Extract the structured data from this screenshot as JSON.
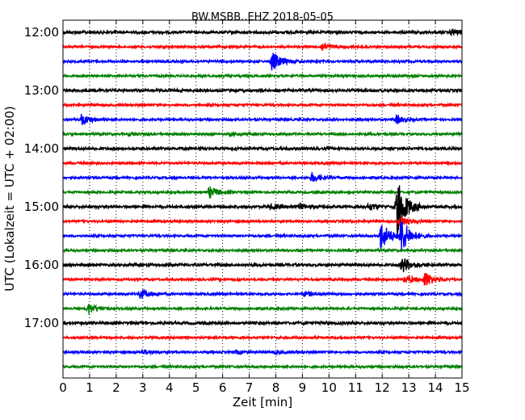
{
  "chart_data": {
    "type": "line",
    "title": "BW.MSBB..EHZ 2018-05-05",
    "xlabel": "Zeit  [min]",
    "ylabel": "UTC (Lokalzeit = UTC + 02:00)",
    "xlim": [
      0,
      15
    ],
    "x_ticks": [
      "0",
      "1",
      "2",
      "3",
      "4",
      "5",
      "6",
      "7",
      "8",
      "9",
      "10",
      "11",
      "12",
      "13",
      "14",
      "15"
    ],
    "y_ticks": [
      {
        "label": "12:00",
        "row": 0
      },
      {
        "label": "13:00",
        "row": 4
      },
      {
        "label": "14:00",
        "row": 8
      },
      {
        "label": "15:00",
        "row": 12
      },
      {
        "label": "16:00",
        "row": 16
      },
      {
        "label": "17:00",
        "row": 20
      }
    ],
    "grid": "vertical dotted",
    "line_interval_minutes": 15,
    "colors": [
      "#000000",
      "#ff0000",
      "#0000ff",
      "#008000"
    ],
    "series": [
      {
        "start": "12:00",
        "events": [
          {
            "t": 14.6,
            "a": 0.35
          }
        ]
      },
      {
        "start": "12:15",
        "events": [
          {
            "t": 9.75,
            "a": 0.5
          }
        ]
      },
      {
        "start": "12:30",
        "events": [
          {
            "t": 7.85,
            "a": 1.2
          }
        ]
      },
      {
        "start": "12:45",
        "events": []
      },
      {
        "start": "13:00",
        "events": []
      },
      {
        "start": "13:15",
        "events": []
      },
      {
        "start": "13:30",
        "events": [
          {
            "t": 0.7,
            "a": 0.7
          },
          {
            "t": 12.5,
            "a": 0.5
          }
        ]
      },
      {
        "start": "13:45",
        "events": [
          {
            "t": 2.5,
            "a": 0.2
          },
          {
            "t": 6.3,
            "a": 0.2
          }
        ]
      },
      {
        "start": "14:00",
        "events": []
      },
      {
        "start": "14:15",
        "events": []
      },
      {
        "start": "14:30",
        "events": [
          {
            "t": 9.35,
            "a": 0.6
          }
        ]
      },
      {
        "start": "14:45",
        "events": [
          {
            "t": 5.5,
            "a": 0.7
          }
        ]
      },
      {
        "start": "15:00",
        "events": [
          {
            "t": 7.8,
            "a": 0.3
          },
          {
            "t": 8.9,
            "a": 0.3
          },
          {
            "t": 11.5,
            "a": 0.4
          },
          {
            "t": 12.55,
            "a": 3.5
          }
        ]
      },
      {
        "start": "15:15",
        "events": [
          {
            "t": 12.65,
            "a": 0.6
          }
        ]
      },
      {
        "start": "15:30",
        "events": [
          {
            "t": 11.95,
            "a": 1.8
          },
          {
            "t": 12.7,
            "a": 2.2
          }
        ]
      },
      {
        "start": "15:45",
        "events": []
      },
      {
        "start": "16:00",
        "events": [
          {
            "t": 12.75,
            "a": 1.0
          }
        ]
      },
      {
        "start": "16:15",
        "events": [
          {
            "t": 12.85,
            "a": 0.5
          },
          {
            "t": 13.6,
            "a": 0.9
          }
        ]
      },
      {
        "start": "16:30",
        "events": [
          {
            "t": 2.9,
            "a": 0.6
          },
          {
            "t": 9.05,
            "a": 0.3
          }
        ]
      },
      {
        "start": "16:45",
        "events": [
          {
            "t": 0.95,
            "a": 0.7
          }
        ]
      },
      {
        "start": "17:00",
        "events": []
      },
      {
        "start": "17:15",
        "events": []
      },
      {
        "start": "17:30",
        "events": [
          {
            "t": 3.0,
            "a": 0.25
          },
          {
            "t": 6.5,
            "a": 0.2
          },
          {
            "t": 7.9,
            "a": 0.2
          }
        ]
      },
      {
        "start": "17:45",
        "events": []
      }
    ]
  }
}
